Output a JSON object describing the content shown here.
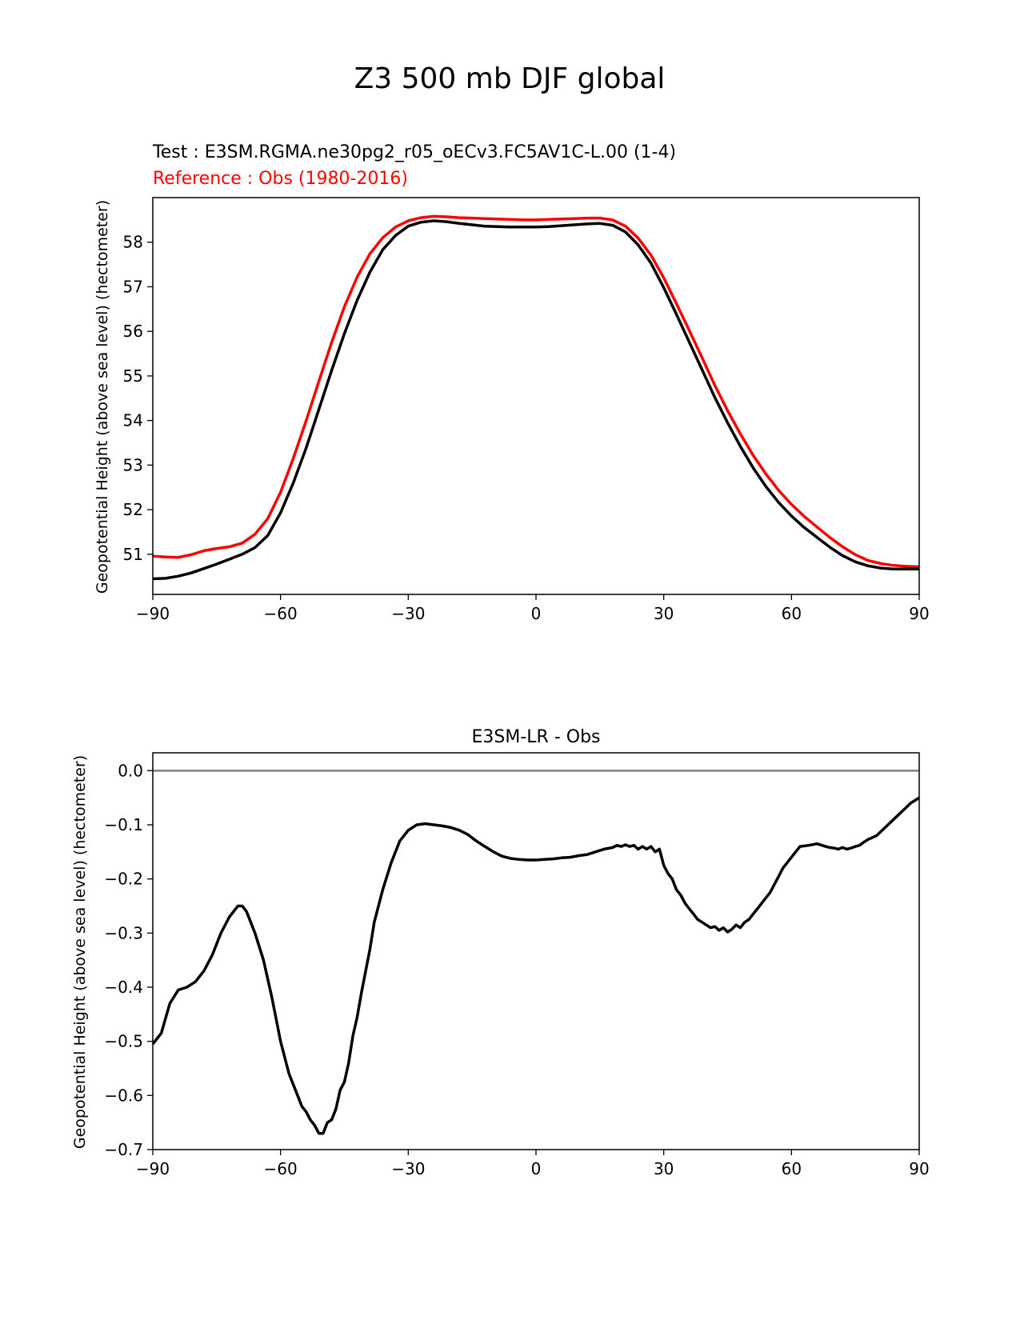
{
  "figure": {
    "suptitle": "Z3 500 mb DJF global"
  },
  "chart_data": [
    {
      "type": "line",
      "title_test": "Test : E3SM.RGMA.ne30pg2_r05_oECv3.FC5AV1C-L.00 (1-4)",
      "title_reference": "Reference : Obs (1980-2016)",
      "xlabel": "",
      "ylabel": "Geopotential Height (above sea level) (hectometer)",
      "xlim": [
        -90,
        90
      ],
      "ylim": [
        50.1,
        59.0
      ],
      "xticks": [
        -90,
        -60,
        -30,
        0,
        30,
        60,
        90
      ],
      "xtick_labels": [
        "−90",
        "−60",
        "−30",
        "0",
        "30",
        "60",
        "90"
      ],
      "yticks": [
        51,
        52,
        53,
        54,
        55,
        56,
        57,
        58
      ],
      "ytick_labels": [
        "51",
        "52",
        "53",
        "54",
        "55",
        "56",
        "57",
        "58"
      ],
      "grid": false,
      "series": [
        {
          "name": "Test",
          "color": "#000000",
          "x": [
            -90,
            -87,
            -84,
            -81,
            -78,
            -75,
            -72,
            -69,
            -66,
            -63,
            -60,
            -57,
            -54,
            -51,
            -48,
            -45,
            -42,
            -39,
            -36,
            -33,
            -30,
            -27,
            -24,
            -21,
            -18,
            -15,
            -12,
            -9,
            -6,
            -3,
            0,
            3,
            6,
            9,
            12,
            15,
            18,
            21,
            24,
            27,
            30,
            33,
            36,
            39,
            42,
            45,
            48,
            51,
            54,
            57,
            60,
            63,
            66,
            69,
            72,
            75,
            78,
            81,
            84,
            87,
            90
          ],
          "values": [
            50.45,
            50.46,
            50.51,
            50.58,
            50.68,
            50.78,
            50.89,
            51.0,
            51.15,
            51.42,
            51.93,
            52.6,
            53.38,
            54.25,
            55.12,
            55.95,
            56.7,
            57.33,
            57.83,
            58.15,
            58.36,
            58.45,
            58.48,
            58.46,
            58.42,
            58.39,
            58.36,
            58.35,
            58.34,
            58.34,
            58.34,
            58.35,
            58.37,
            58.39,
            58.41,
            58.42,
            58.38,
            58.23,
            57.94,
            57.53,
            56.98,
            56.38,
            55.76,
            55.14,
            54.52,
            53.95,
            53.42,
            52.94,
            52.52,
            52.16,
            51.86,
            51.6,
            51.38,
            51.16,
            50.97,
            50.83,
            50.74,
            50.69,
            50.67,
            50.67,
            50.67
          ]
        },
        {
          "name": "Reference",
          "color": "#ff0000",
          "x": [
            -90,
            -87,
            -84,
            -81,
            -78,
            -75,
            -72,
            -69,
            -66,
            -63,
            -60,
            -57,
            -54,
            -51,
            -48,
            -45,
            -42,
            -39,
            -36,
            -33,
            -30,
            -27,
            -24,
            -21,
            -18,
            -15,
            -12,
            -9,
            -6,
            -3,
            0,
            3,
            6,
            9,
            12,
            15,
            18,
            21,
            24,
            27,
            30,
            33,
            36,
            39,
            42,
            45,
            48,
            51,
            54,
            57,
            60,
            63,
            66,
            69,
            72,
            75,
            78,
            81,
            84,
            87,
            90
          ],
          "values": [
            50.96,
            50.94,
            50.93,
            50.99,
            51.08,
            51.13,
            51.17,
            51.25,
            51.45,
            51.8,
            52.39,
            53.15,
            53.99,
            54.88,
            55.75,
            56.55,
            57.22,
            57.74,
            58.1,
            58.34,
            58.48,
            58.55,
            58.58,
            58.57,
            58.55,
            58.54,
            58.53,
            58.52,
            58.51,
            58.5,
            58.5,
            58.51,
            58.52,
            58.53,
            58.54,
            58.54,
            58.5,
            58.36,
            58.09,
            57.71,
            57.2,
            56.62,
            56.02,
            55.41,
            54.79,
            54.22,
            53.7,
            53.22,
            52.8,
            52.43,
            52.12,
            51.85,
            51.61,
            51.38,
            51.17,
            50.99,
            50.86,
            50.79,
            50.75,
            50.73,
            50.72
          ]
        }
      ]
    },
    {
      "type": "line",
      "title": "E3SM-LR - Obs",
      "xlabel": "",
      "ylabel": "Geopotential Height (above sea level) (hectometer)",
      "xlim": [
        -90,
        90
      ],
      "ylim": [
        -0.7,
        0.033
      ],
      "xticks": [
        -90,
        -60,
        -30,
        0,
        30,
        60,
        90
      ],
      "xtick_labels": [
        "−90",
        "−60",
        "−30",
        "0",
        "30",
        "60",
        "90"
      ],
      "yticks": [
        0.0,
        -0.1,
        -0.2,
        -0.3,
        -0.4,
        -0.5,
        -0.6,
        -0.7
      ],
      "ytick_labels": [
        "0.0",
        "−0.1",
        "−0.2",
        "−0.3",
        "−0.4",
        "−0.5",
        "−0.6",
        "−0.7"
      ],
      "zero_line": {
        "y": 0.0,
        "color": "#808080"
      },
      "grid": false,
      "series": [
        {
          "name": "E3SM-LR - Obs",
          "color": "#000000",
          "x": [
            -90,
            -88,
            -86,
            -84,
            -82,
            -80,
            -78,
            -76,
            -74,
            -72,
            -70,
            -69,
            -68,
            -66,
            -64,
            -62,
            -60,
            -58,
            -56,
            -55,
            -54,
            -53,
            -52,
            -51,
            -50,
            -49,
            -48,
            -47,
            -46,
            -45,
            -44,
            -43,
            -42,
            -41,
            -40,
            -39,
            -38,
            -36,
            -34,
            -32,
            -30,
            -28,
            -26,
            -24,
            -22,
            -20,
            -18,
            -16,
            -14,
            -12,
            -10,
            -8,
            -6,
            -4,
            -2,
            0,
            2,
            4,
            6,
            8,
            10,
            12,
            14,
            16,
            18,
            19,
            20,
            21,
            22,
            23,
            24,
            25,
            26,
            27,
            28,
            29,
            30,
            31,
            32,
            33,
            34,
            35,
            36,
            37,
            38,
            39,
            40,
            41,
            42,
            43,
            44,
            45,
            46,
            47,
            48,
            49,
            50,
            51,
            52,
            53,
            54,
            55,
            56,
            57,
            58,
            60,
            62,
            64,
            66,
            68,
            69,
            70,
            71,
            72,
            73,
            74,
            75,
            76,
            77,
            78,
            80,
            82,
            84,
            86,
            88,
            90
          ],
          "values": [
            -0.505,
            -0.485,
            -0.43,
            -0.405,
            -0.4,
            -0.39,
            -0.37,
            -0.34,
            -0.3,
            -0.27,
            -0.25,
            -0.25,
            -0.26,
            -0.3,
            -0.35,
            -0.42,
            -0.5,
            -0.56,
            -0.6,
            -0.62,
            -0.63,
            -0.645,
            -0.655,
            -0.67,
            -0.67,
            -0.65,
            -0.645,
            -0.625,
            -0.59,
            -0.575,
            -0.54,
            -0.49,
            -0.455,
            -0.41,
            -0.37,
            -0.33,
            -0.28,
            -0.22,
            -0.17,
            -0.13,
            -0.11,
            -0.1,
            -0.098,
            -0.1,
            -0.102,
            -0.105,
            -0.11,
            -0.118,
            -0.13,
            -0.14,
            -0.15,
            -0.158,
            -0.162,
            -0.164,
            -0.165,
            -0.165,
            -0.164,
            -0.163,
            -0.161,
            -0.16,
            -0.157,
            -0.155,
            -0.15,
            -0.145,
            -0.142,
            -0.138,
            -0.14,
            -0.137,
            -0.14,
            -0.138,
            -0.145,
            -0.14,
            -0.145,
            -0.14,
            -0.15,
            -0.145,
            -0.175,
            -0.19,
            -0.2,
            -0.22,
            -0.23,
            -0.245,
            -0.255,
            -0.265,
            -0.275,
            -0.28,
            -0.285,
            -0.29,
            -0.288,
            -0.295,
            -0.29,
            -0.298,
            -0.293,
            -0.285,
            -0.29,
            -0.28,
            -0.275,
            -0.265,
            -0.255,
            -0.245,
            -0.235,
            -0.225,
            -0.21,
            -0.195,
            -0.18,
            -0.16,
            -0.14,
            -0.138,
            -0.135,
            -0.14,
            -0.142,
            -0.143,
            -0.145,
            -0.142,
            -0.145,
            -0.143,
            -0.14,
            -0.138,
            -0.132,
            -0.127,
            -0.12,
            -0.105,
            -0.09,
            -0.075,
            -0.06,
            -0.05
          ]
        }
      ]
    }
  ]
}
